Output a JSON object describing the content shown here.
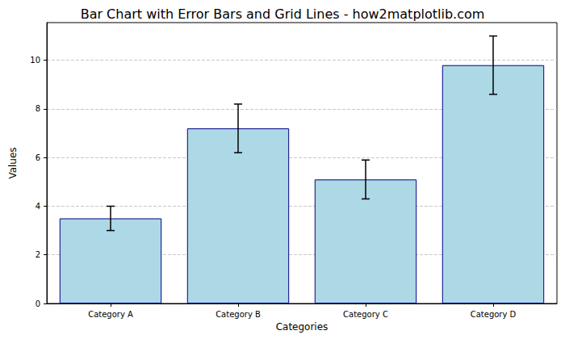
{
  "chart_data": {
    "type": "bar",
    "title": "Bar Chart with Error Bars and Grid Lines - how2matplotlib.com",
    "x_label": "Categories",
    "y_label": "Values",
    "categories": [
      "Category A",
      "Category B",
      "Category C",
      "Category D"
    ],
    "values": [
      3.5,
      7.2,
      5.1,
      9.8
    ],
    "errors": [
      0.5,
      1.0,
      0.8,
      1.2
    ],
    "color": "#add8e6",
    "ylim": [
      0,
      11.55
    ],
    "yticks": [
      0,
      2,
      4,
      6,
      8,
      10
    ],
    "grid": true
  }
}
